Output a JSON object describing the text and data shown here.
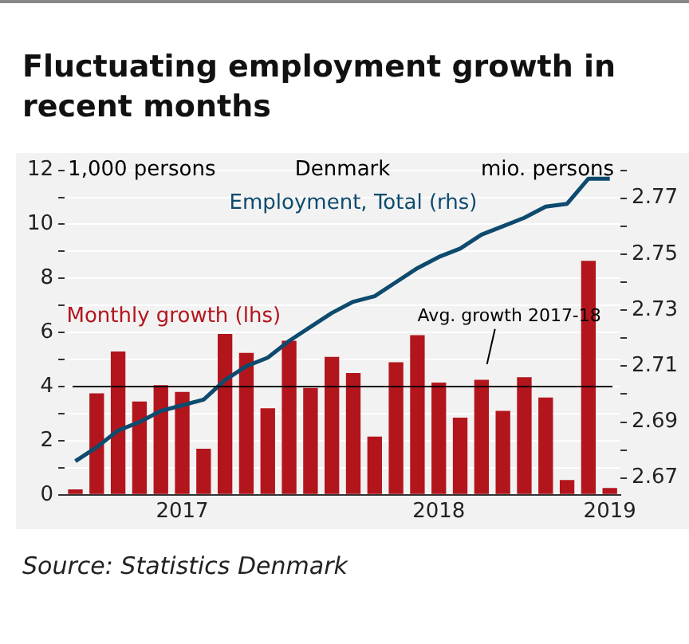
{
  "chart_data": {
    "type": "bar",
    "title": "Fluctuating employment growth in recent months",
    "categories": [
      null,
      null,
      null,
      null,
      null,
      "2017",
      null,
      null,
      null,
      null,
      null,
      null,
      null,
      null,
      null,
      null,
      null,
      "2018",
      null,
      null,
      null,
      null,
      null,
      null,
      null,
      "2019"
    ],
    "series": [
      {
        "name": "Monthly growth (lhs)",
        "color": "#b3151c",
        "values": [
          0.2,
          3.75,
          5.3,
          3.45,
          4.05,
          3.8,
          1.7,
          5.95,
          5.25,
          3.2,
          5.7,
          3.95,
          5.1,
          4.5,
          2.15,
          4.9,
          5.9,
          4.15,
          2.85,
          4.25,
          3.1,
          4.35,
          3.6,
          0.55,
          8.65,
          0.25
        ]
      },
      {
        "name": "Employment, Total (rhs)",
        "type": "line",
        "axis": "y2",
        "color": "#0e4a6e",
        "values": [
          2.676,
          2.681,
          2.687,
          2.69,
          2.694,
          2.696,
          2.698,
          2.705,
          2.71,
          2.713,
          2.719,
          2.724,
          2.729,
          2.733,
          2.735,
          2.74,
          2.745,
          2.749,
          2.752,
          2.757,
          2.76,
          2.763,
          2.767,
          2.768,
          2.777,
          2.777
        ]
      }
    ],
    "ylabel": "1,000 persons",
    "y2label": "mio. persons",
    "ylim": [
      0,
      12
    ],
    "yticks": [
      0,
      {
        "value": 1,
        "label": null
      },
      2,
      {
        "value": 3,
        "label": null
      },
      4,
      {
        "value": 5,
        "label": null
      },
      6,
      {
        "value": 7,
        "label": null
      },
      8,
      {
        "value": 9,
        "label": null
      },
      10,
      {
        "value": 11,
        "label": null
      },
      12
    ],
    "y2lim": [
      2.664,
      2.78
    ],
    "y2ticks": [
      2.67,
      {
        "value": 2.68,
        "label": null
      },
      2.69,
      {
        "value": 2.7,
        "label": null
      },
      2.71,
      {
        "value": 2.72,
        "label": null
      },
      2.73,
      {
        "value": 2.74,
        "label": null
      },
      2.75,
      {
        "value": 2.76,
        "label": null
      },
      2.77,
      {
        "value": 2.78,
        "label": null
      }
    ],
    "ref_lines": [
      {
        "axis": "y",
        "value": 4,
        "label": "Avg. growth 2017-18",
        "color": "#000000"
      }
    ],
    "annotations": [
      "Denmark",
      "Source: Statistics Denmark"
    ],
    "grid": "y",
    "legend": false,
    "marker": "none",
    "line_style": "solid"
  }
}
